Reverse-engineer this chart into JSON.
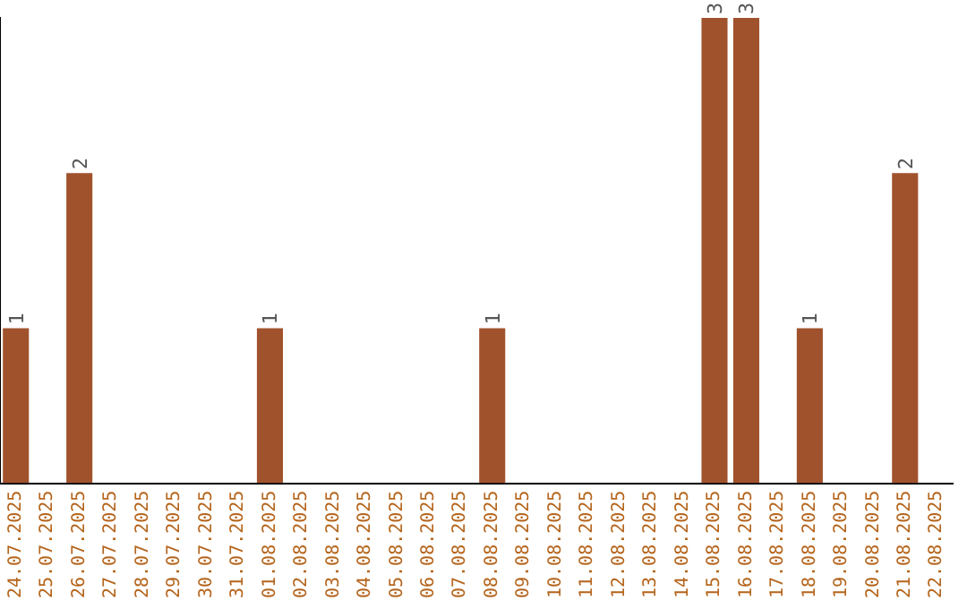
{
  "chart_data": {
    "type": "bar",
    "categories": [
      "24.07.2025",
      "25.07.2025",
      "26.07.2025",
      "27.07.2025",
      "28.07.2025",
      "29.07.2025",
      "30.07.2025",
      "31.07.2025",
      "01.08.2025",
      "02.08.2025",
      "03.08.2025",
      "04.08.2025",
      "05.08.2025",
      "06.08.2025",
      "07.08.2025",
      "08.08.2025",
      "09.08.2025",
      "10.08.2025",
      "11.08.2025",
      "12.08.2025",
      "13.08.2025",
      "14.08.2025",
      "15.08.2025",
      "16.08.2025",
      "17.08.2025",
      "18.08.2025",
      "19.08.2025",
      "20.08.2025",
      "21.08.2025",
      "22.08.2025"
    ],
    "values": [
      1,
      0,
      2,
      0,
      0,
      0,
      0,
      0,
      1,
      0,
      0,
      0,
      0,
      0,
      0,
      1,
      0,
      0,
      0,
      0,
      0,
      0,
      3,
      3,
      0,
      1,
      0,
      0,
      2,
      0
    ],
    "value_labels": [
      "1",
      null,
      "2",
      null,
      null,
      null,
      null,
      null,
      "1",
      null,
      null,
      null,
      null,
      null,
      null,
      "1",
      null,
      null,
      null,
      null,
      null,
      null,
      "3",
      "3",
      null,
      "1",
      null,
      null,
      "2",
      null
    ],
    "color": "#a0522d"
  }
}
